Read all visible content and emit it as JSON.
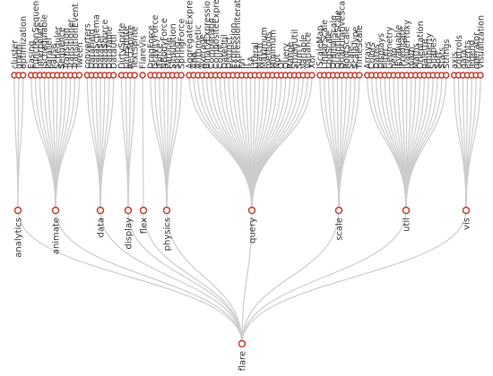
{
  "root": {
    "label": "flare"
  },
  "groups": [
    {
      "label": "analytics",
      "children": [
        "cluster",
        "graph",
        "optimization"
      ]
    },
    {
      "label": "animate",
      "children": [
        "Easing",
        "FunctionSequence",
        "interpolate",
        "ISchedulable",
        "Parallel",
        "Pause",
        "Scheduler",
        "Sequence",
        "Transition",
        "Transitioner",
        "TransitionEvent",
        "Tween"
      ]
    },
    {
      "label": "data",
      "children": [
        "converters",
        "DataField",
        "DataSchema",
        "DataSet",
        "DataSource",
        "DataTable",
        "DataUtil"
      ]
    },
    {
      "label": "display",
      "children": [
        "DirtySprite",
        "LineSprite",
        "RectSprite",
        "TextSprite"
      ]
    },
    {
      "label": "flex",
      "children": [
        "FlareVis"
      ]
    },
    {
      "label": "physics",
      "children": [
        "DragForce",
        "GravityForce",
        "IForce",
        "NBodyForce",
        "Particle",
        "Simulation",
        "Spring",
        "SpringForce"
      ]
    },
    {
      "label": "query",
      "children": [
        "AggregateExpression",
        "And",
        "Arithmetic",
        "Average",
        "BinaryExpression",
        "Comparison",
        "CompositeExpression",
        "Count",
        "DateUtil",
        "Distinct",
        "Expression",
        "ExpressionIterator",
        "Fn",
        "If",
        "IsA",
        "Literal",
        "Match",
        "Maximum",
        "methods",
        "Minimum",
        "Not",
        "Or",
        "Query",
        "Range",
        "StringUtil",
        "Sum",
        "Variable",
        "Variance",
        "Xor"
      ]
    },
    {
      "label": "scale",
      "children": [
        "IScaleMap",
        "LinearScale",
        "LogScale",
        "OrdinalScale",
        "QuantileScale",
        "QuantitativeScale",
        "RootScale",
        "Scale",
        "ScaleType",
        "TimeScale"
      ]
    },
    {
      "label": "util",
      "children": [
        "Arrays",
        "Colors",
        "Dates",
        "Displays",
        "Filter",
        "Geometry",
        "heap",
        "IEvaluable",
        "IPredicate",
        "IValueProxy",
        "math",
        "Maths",
        "Orientation",
        "palette",
        "Property",
        "Shapes",
        "Sort",
        "Stats",
        "Strings"
      ]
    },
    {
      "label": "vis",
      "children": [
        "axis",
        "controls",
        "data",
        "events",
        "legend",
        "operator",
        "Visualization"
      ]
    }
  ],
  "colors": {
    "link": "#cccccc",
    "node_stroke": "#c0392b",
    "node_fill": "#ffffff",
    "text": "#333333"
  }
}
